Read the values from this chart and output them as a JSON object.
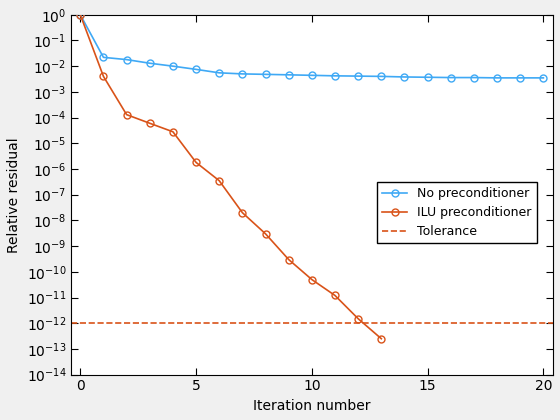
{
  "title": "",
  "xlabel": "Iteration number",
  "ylabel": "Relative residual",
  "xlim": [
    -0.4,
    20.4
  ],
  "ylim_exp": [
    -14,
    0
  ],
  "tolerance": 1e-12,
  "no_precond_x": [
    0,
    1,
    2,
    3,
    4,
    5,
    6,
    7,
    8,
    9,
    10,
    11,
    12,
    13,
    14,
    15,
    16,
    17,
    18,
    19,
    20
  ],
  "no_precond_y": [
    1.0,
    0.022,
    0.018,
    0.013,
    0.01,
    0.0075,
    0.0055,
    0.005,
    0.0048,
    0.0046,
    0.0044,
    0.0042,
    0.0041,
    0.004,
    0.0038,
    0.0037,
    0.0036,
    0.0036,
    0.0035,
    0.0035,
    0.0035
  ],
  "ilu_x": [
    0,
    1,
    2,
    3,
    4,
    5,
    6,
    7,
    8,
    9,
    10,
    11,
    12,
    13
  ],
  "ilu_y": [
    1.0,
    0.004,
    0.00013,
    6e-05,
    2.8e-05,
    1.8e-06,
    3.5e-07,
    2e-08,
    3e-09,
    3e-10,
    5e-11,
    1.2e-11,
    1.5e-12,
    2.5e-13
  ],
  "no_precond_color": "#3FA9F5",
  "ilu_color": "#D95319",
  "tolerance_color": "#D95319",
  "legend_labels": [
    "No preconditioner",
    "ILU preconditioner",
    "Tolerance"
  ],
  "marker": "o",
  "markersize": 5,
  "linewidth": 1.2,
  "figure_facecolor": "#F0F0F0",
  "axes_facecolor": "#FFFFFF"
}
